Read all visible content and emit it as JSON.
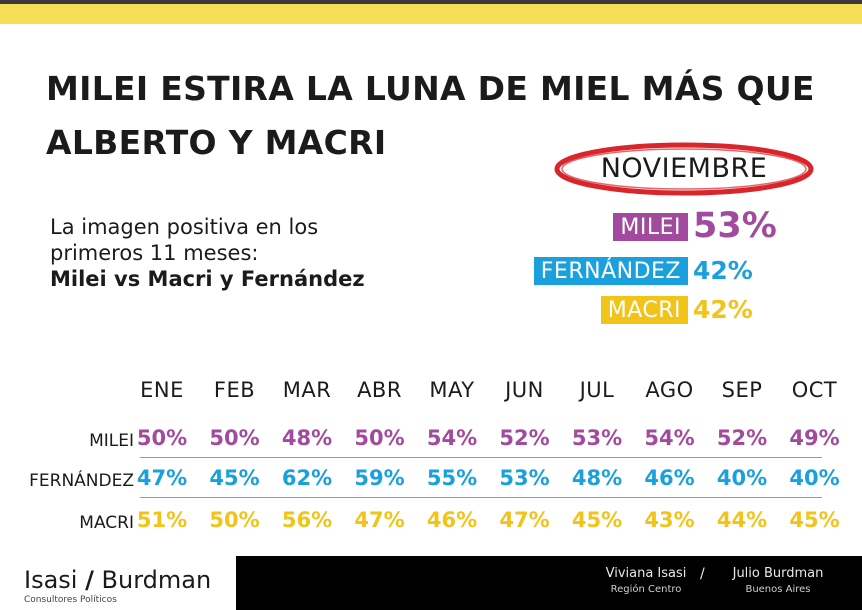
{
  "header": {
    "title_line1": "MILEI ESTIRA LA LUNA DE MIEL MÁS QUE",
    "title_line2": "ALBERTO Y MACRI",
    "subtitle_line1": "La imagen positiva en los",
    "subtitle_line2": "primeros 11 meses:",
    "subtitle_line3": "Milei vs Macri y Fernández"
  },
  "highlight": {
    "month": "NOVIEMBRE",
    "rows": [
      {
        "label": "MILEI",
        "value": "53%",
        "color": "#a24b9e"
      },
      {
        "label": "FERNÁNDEZ",
        "value": "42%",
        "color": "#1aa0dd"
      },
      {
        "label": "MACRI",
        "value": "42%",
        "color": "#f2c318"
      }
    ],
    "ring_color": "#d9252b"
  },
  "chart_data": {
    "type": "table",
    "categories": [
      "ENE",
      "FEB",
      "MAR",
      "ABR",
      "MAY",
      "JUN",
      "JUL",
      "AGO",
      "SEP",
      "OCT"
    ],
    "series": [
      {
        "name": "MILEI",
        "color": "#a24b9e",
        "labels": [
          "50%",
          "50%",
          "48%",
          "50%",
          "54%",
          "52%",
          "53%",
          "54%",
          "52%",
          "49%"
        ],
        "values": [
          50,
          50,
          48,
          50,
          54,
          52,
          53,
          54,
          52,
          49
        ]
      },
      {
        "name": "FERNÁNDEZ",
        "color": "#1aa0dd",
        "labels": [
          "47%",
          "45%",
          "62%",
          "59%",
          "55%",
          "53%",
          "48%",
          "46%",
          "40%",
          "40%"
        ],
        "values": [
          47,
          45,
          62,
          59,
          55,
          53,
          48,
          46,
          40,
          40
        ]
      },
      {
        "name": "MACRI",
        "color": "#f2c318",
        "labels": [
          "51%",
          "50%",
          "56%",
          "47%",
          "46%",
          "47%",
          "45%",
          "43%",
          "44%",
          "45%"
        ],
        "values": [
          51,
          50,
          56,
          47,
          46,
          47,
          45,
          43,
          44,
          45
        ]
      }
    ]
  },
  "footer": {
    "logo_part1": "Isasi",
    "logo_slash": "/",
    "logo_part2": "Burdman",
    "logo_sub": "Consultores Políticos",
    "credits": [
      {
        "name": "Viviana Isasi",
        "sub": "Región Centro"
      },
      {
        "name": "Julio Burdman",
        "sub": "Buenos Aires"
      }
    ],
    "separator": "/"
  },
  "colors": {
    "top_bar": "#f5dd55",
    "footer_bar": "#000000"
  }
}
